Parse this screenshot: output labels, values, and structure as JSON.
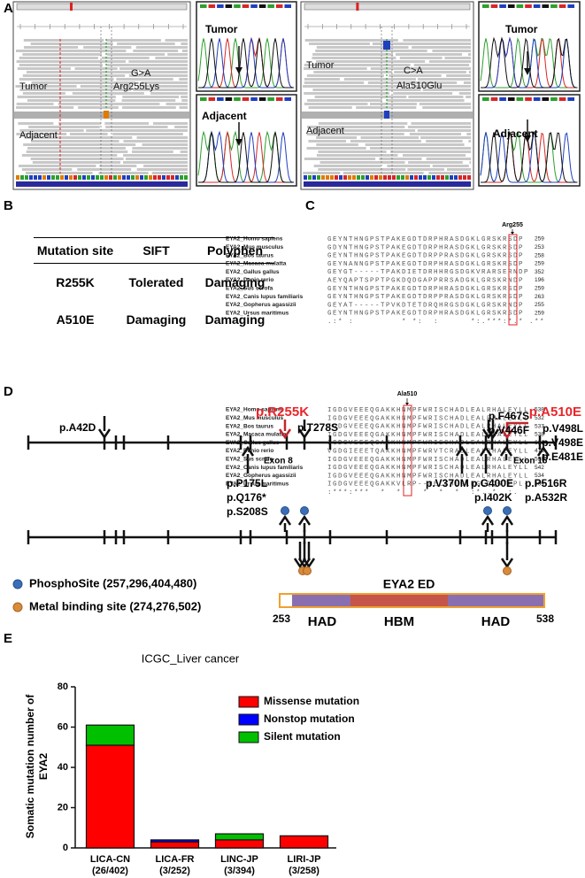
{
  "panel_labels": [
    "A",
    "B",
    "C",
    "D",
    "E"
  ],
  "panel_a": {
    "igv": [
      {
        "tumor": "Tumor",
        "adjacent": "Adjacent",
        "change": "G>A",
        "protein": "Arg255Lys"
      },
      {
        "tumor": "Tumor",
        "adjacent": "Adjacent",
        "change": "C>A",
        "protein": "Ala510Glu"
      }
    ],
    "chromatograms": [
      {
        "tumor": "Tumor",
        "adjacent": "Adjacent"
      },
      {
        "tumor": "Tumor",
        "adjacent": "Adjacent"
      }
    ]
  },
  "panel_b": {
    "table": {
      "header": [
        "Mutation site",
        "SIFT",
        "Polyphen"
      ],
      "rows": [
        [
          "R255K",
          "Tolerated",
          "Damaging"
        ],
        [
          "A510E",
          "Damaging",
          "Damaging"
        ]
      ]
    }
  },
  "panel_c": {
    "blocks": [
      {
        "site": "Arg255",
        "rows": [
          {
            "species": "EYA2_Homo sapiens",
            "sequence": "GEYNTHNGPSTPAKEGDTDRPHRASDGKLGRSKRSDP",
            "position": "259"
          },
          {
            "species": "EYA2_Mus musculus",
            "sequence": "GDYNTHNGPSTPAKEGDTDRPHRASDGKLGRSKRSDP",
            "position": "253"
          },
          {
            "species": "EYA2_Bos taurus",
            "sequence": "GEYNTHNGPSTPAKEGDTDRPPRASDGKLGRSKRSDP",
            "position": "258"
          },
          {
            "species": "EYA2_Macaca mulatta",
            "sequence": "GEYNANNGPSTPAKEGDTDRPHRASDGKLGRSKRSDP",
            "position": "259"
          },
          {
            "species": "EYA2_Gallus gallus",
            "sequence": "GEYGT-----TPAKDIETDRHHRGSDGKVRARSERNDP",
            "position": "352"
          },
          {
            "species": "EYA2_Danio rerio",
            "sequence": "AEYQAPTSPPTPGKDQDGAPPRRSADGKLGRSKRNDP",
            "position": "196"
          },
          {
            "species": "EYA2_Sus scrofa",
            "sequence": "GEYNTHNGPSTPAKEGDTDRPHRASDGKLGRSKRSDP",
            "position": "259"
          },
          {
            "species": "EYA2_Canis lupus familiaris",
            "sequence": "GEYNTHNGPSTPAKEGDTDRPPRASDGKLGRSKRSDP",
            "position": "263"
          },
          {
            "species": "EYA2_Gopherus agassizii",
            "sequence": "GEYAT-----TPVKDTETDRQHRGSDGKLGRSKRNDP",
            "position": "255"
          },
          {
            "species": "EYA2_Ursus maritimus",
            "sequence": "GEYNTHNGPSTPAKEGDTDRPHRASDGKLGRSKRSDP",
            "position": "259"
          }
        ],
        "consensus": ".:* :         * *:  :      *:.***:*.* .**"
      },
      {
        "site": "Ala510",
        "rows": [
          {
            "species": "EYA2_Homo sapiens",
            "sequence": "IGDGVEEEQGAKKHNMPFWRISCHADLEALRHALEYLL",
            "position": "538"
          },
          {
            "species": "EYA2_Mus musculus",
            "sequence": "IGDGVEEEQGAKKHNMPFWRISCHADLEALRHALEYLL",
            "position": "532"
          },
          {
            "species": "EYA2_Bos taurus",
            "sequence": "IGDGVEEEQGAKKHNMPFWRISCHADLEALRHALEYLL",
            "position": "537"
          },
          {
            "species": "EYA2_Macaca mulatta",
            "sequence": "IGDGVEEEQGAKKHNMPFWRISCHADLEALRHALEYLL",
            "position": "538"
          },
          {
            "species": "EYA2_Gallus gallus",
            "sequence": "IGDGVEEEQGAKKHNMPFWRISCHADLEALRHALEYLL",
            "position": "631"
          },
          {
            "species": "EYA2_Danio rerio",
            "sequence": "VGDGIEEETQAKKHNMPFWRVTCRADLEALRHALEYLL",
            "position": "475"
          },
          {
            "species": "EYA2_Sus scrofa",
            "sequence": "IGDGVEEEQGAKKHNMPFWRISCHADLEALRHALEYLL",
            "position": "538"
          },
          {
            "species": "EYA2_Canis lupus familiaris",
            "sequence": "IGDGVEEEQGAKKHNMPFWRISCHADLEALRHALEYLL",
            "position": "542"
          },
          {
            "species": "EYA2_Gopherus agassizii",
            "sequence": "IGDGVEEEQGAKKHNMPFWRISCHADLEALRHALEYLL",
            "position": "534"
          },
          {
            "species": "EYA2_Ursus maritimus",
            "sequence": "IGDGVEEEQGAKKVLRP--RELCHLGLRGLQQGTPPL-",
            "position": "509"
          }
        ],
        "consensus": ":***:***  *  *    *  *  *  :*..*  :."
      }
    ]
  },
  "panel_d": {
    "highlighted": [
      "p.R255K",
      "p.A510E"
    ],
    "above": [
      "p.A42D",
      "p.T278S",
      "p.F467S",
      "p.V446F",
      "p.V498L",
      "p.V498E",
      "p.E481E"
    ],
    "below": [
      "p.P175L",
      "p.Q176*",
      "p.S208S",
      "p.V370M",
      "p.G400E",
      "p.I402K",
      "p.P516R",
      "p.A532R"
    ],
    "exons": [
      "Exon 8",
      "Exon 15"
    ],
    "legend": [
      "PhosphoSite (257,296,404,480)",
      "Metal binding site (274,276,502)"
    ],
    "domain": {
      "name": "EYA2 ED",
      "start": "253",
      "end": "538",
      "regions": [
        "HAD",
        "HBM",
        "HAD"
      ]
    }
  },
  "chart_data": {
    "type": "stacked_bar",
    "title": "ICGC_Liver cancer",
    "y_label": "Somatic mutation number of EYA2",
    "categories": [
      "LICA-CN",
      "LICA-FR",
      "LINC-JP",
      "LIRI-JP"
    ],
    "category_notes": [
      "(26/402)",
      "(3/252)",
      "(3/394)",
      "(3/258)"
    ],
    "series": [
      {
        "name": "Missense mutation",
        "color": "#ff0000",
        "values": [
          51,
          3,
          4,
          6
        ]
      },
      {
        "name": "Nonstop mutation",
        "color": "#0000ff",
        "values": [
          0,
          1,
          0,
          0
        ]
      },
      {
        "name": "Silent mutation",
        "color": "#00c000",
        "values": [
          10,
          0,
          3,
          0
        ]
      }
    ],
    "ylim": [
      0,
      80
    ],
    "yticks": [
      0,
      20,
      40,
      60,
      80
    ]
  }
}
